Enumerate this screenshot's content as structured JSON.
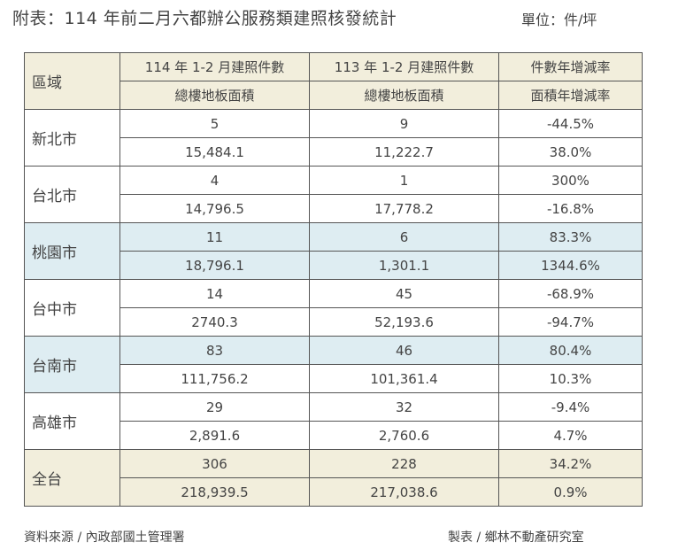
{
  "header": {
    "title": "附表：114 年前二月六都辦公服務類建照核發統計",
    "unit": "單位：件/坪"
  },
  "table": {
    "region_header": "區域",
    "col_headers": [
      {
        "top": "114 年 1-2 月建照件數",
        "bottom": "總樓地板面積"
      },
      {
        "top": "113 年 1-2 月建照件數",
        "bottom": "總樓地板面積"
      },
      {
        "top": "件數年增減率",
        "bottom": "面積年增減率"
      }
    ],
    "rows": [
      {
        "region": "新北市",
        "count": [
          "5",
          "9",
          "-44.5%"
        ],
        "area": [
          "15,484.1",
          "11,222.7",
          "38.0%"
        ]
      },
      {
        "region": "台北市",
        "count": [
          "4",
          "1",
          "300%"
        ],
        "area": [
          "14,796.5",
          "17,778.2",
          "-16.8%"
        ]
      },
      {
        "region": "桃園市",
        "count": [
          "11",
          "6",
          "83.3%"
        ],
        "area": [
          "18,796.1",
          "1,301.1",
          "1344.6%"
        ]
      },
      {
        "region": "台中市",
        "count": [
          "14",
          "45",
          "-68.9%"
        ],
        "area": [
          "2740.3",
          "52,193.6",
          "-94.7%"
        ]
      },
      {
        "region": "台南市",
        "count": [
          "83",
          "46",
          "80.4%"
        ],
        "area": [
          "111,756.2",
          "101,361.4",
          "10.3%"
        ]
      },
      {
        "region": "高雄市",
        "count": [
          "29",
          "32",
          "-9.4%"
        ],
        "area": [
          "2,891.6",
          "2,760.6",
          "4.7%"
        ]
      },
      {
        "region": "全台",
        "count": [
          "306",
          "228",
          "34.2%"
        ],
        "area": [
          "218,939.5",
          "217,038.6",
          "0.9%"
        ]
      }
    ]
  },
  "footer": {
    "source": "資料來源 / 內政部國土管理署",
    "maker": "製表 / 鄉林不動產研究室"
  },
  "colors": {
    "header_bg": "#f2eedc",
    "highlight_bg": "#deedf2",
    "total_bg": "#f2eedc",
    "border": "#555555"
  }
}
